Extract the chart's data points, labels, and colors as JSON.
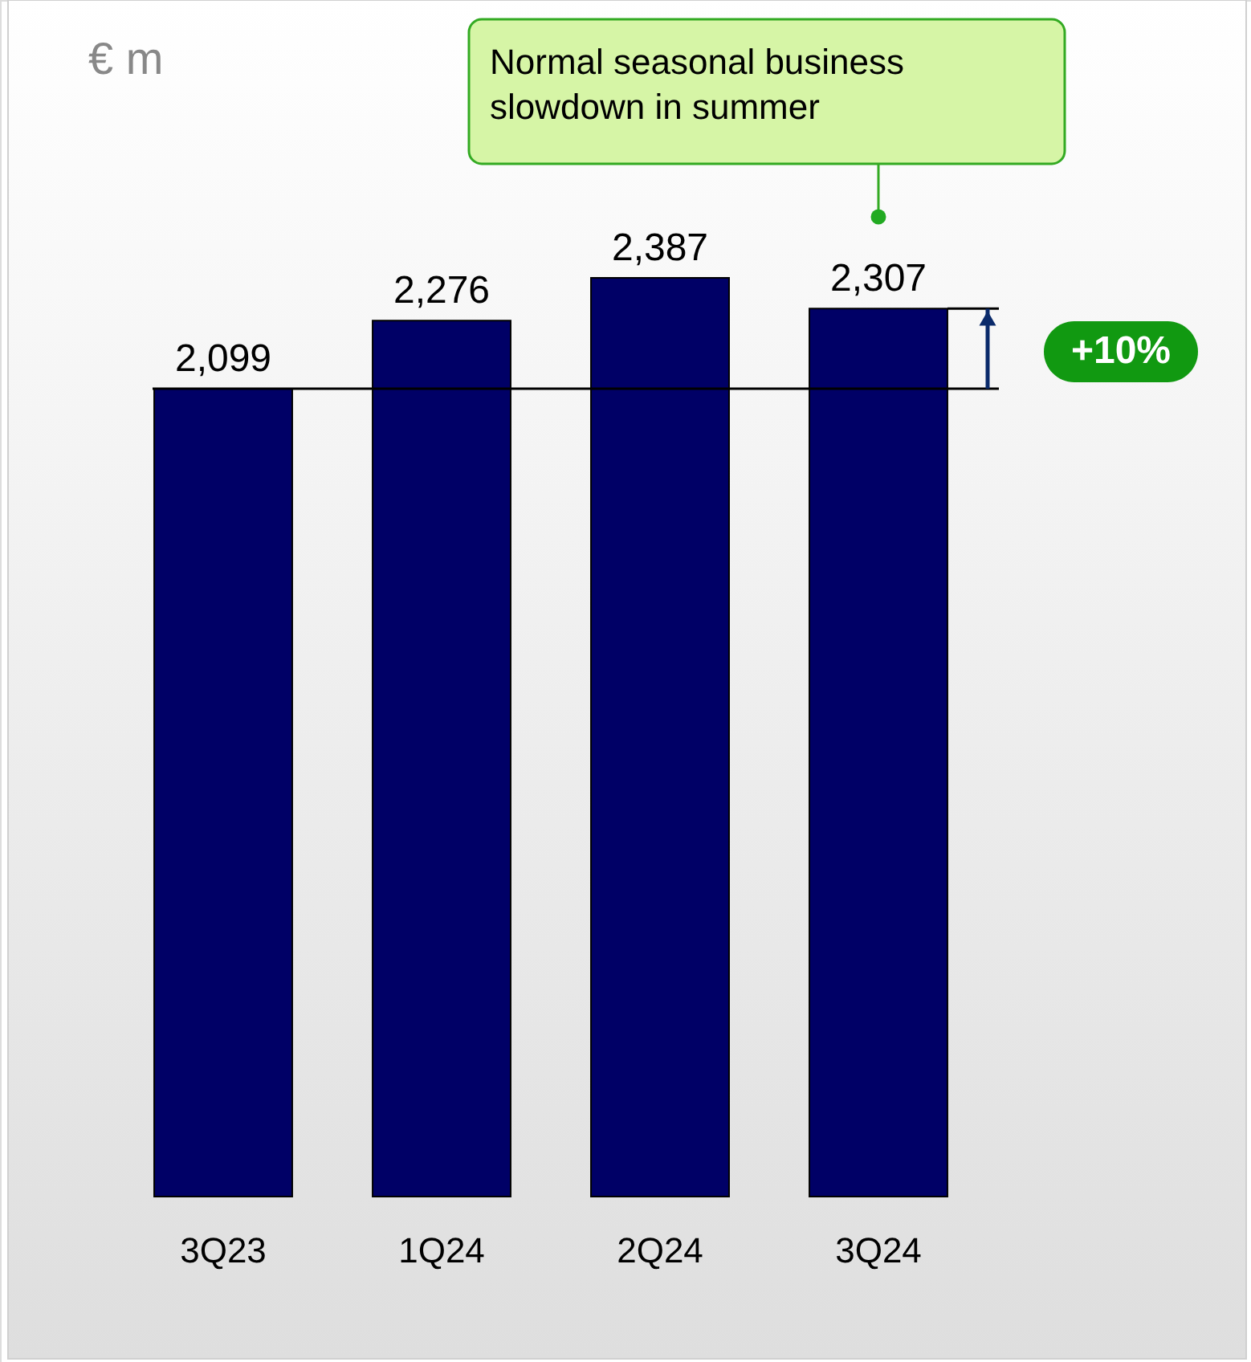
{
  "chart_data": {
    "type": "bar",
    "ylabel": "€ m",
    "categories": [
      "3Q23",
      "1Q24",
      "2Q24",
      "3Q24"
    ],
    "values": [
      2099,
      2276,
      2387,
      2307
    ],
    "color": "#000066",
    "value_labels": [
      "2,099",
      "2,276",
      "2,387",
      "2,307"
    ],
    "ref_lines": [
      {
        "axis": "y",
        "value": 2099
      }
    ],
    "annotations": [
      "Normal seasonal business slowdown in summer",
      "+10%"
    ]
  }
}
